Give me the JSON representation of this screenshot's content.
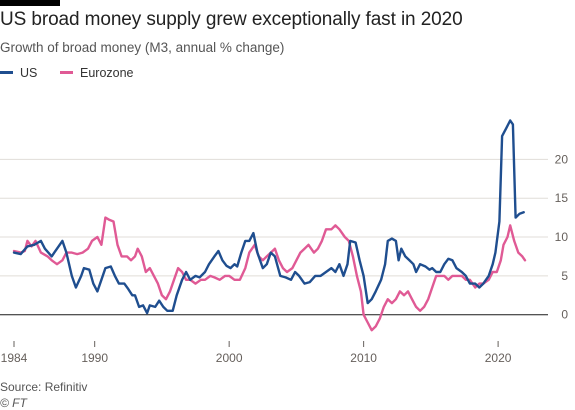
{
  "chart_data": {
    "type": "line",
    "title": "US broad money supply grew exceptionally fast in 2020",
    "subtitle": "Growth of broad money (M3, annual % change)",
    "xlabel": "",
    "ylabel": "",
    "xlim": [
      1984,
      2022
    ],
    "ylim": [
      -3,
      27
    ],
    "x_ticks": [
      1984,
      1990,
      2000,
      2010,
      2020
    ],
    "x_tick_labels": [
      "1984",
      "1990",
      "2000",
      "2010",
      "2020"
    ],
    "y_ticks": [
      0,
      5,
      10,
      15,
      20
    ],
    "y_tick_labels": [
      "0",
      "5",
      "10",
      "15",
      "20"
    ],
    "grid": true,
    "legend_position": "top-left",
    "series": [
      {
        "name": "US",
        "color": "#1f4e8f",
        "points": [
          [
            1984,
            8.0
          ],
          [
            1984.5,
            7.8
          ],
          [
            1985,
            8.8
          ],
          [
            1985.5,
            9.0
          ],
          [
            1986,
            9.5
          ],
          [
            1986.3,
            8.5
          ],
          [
            1986.8,
            7.5
          ],
          [
            1987,
            8.0
          ],
          [
            1987.6,
            9.5
          ],
          [
            1987.9,
            8.0
          ],
          [
            1988.3,
            5.0
          ],
          [
            1988.6,
            3.5
          ],
          [
            1989,
            5.0
          ],
          [
            1989.2,
            6.0
          ],
          [
            1989.6,
            5.8
          ],
          [
            1989.9,
            4.0
          ],
          [
            1990.2,
            3.0
          ],
          [
            1990.5,
            4.5
          ],
          [
            1990.8,
            6.0
          ],
          [
            1991.2,
            6.2
          ],
          [
            1991.5,
            5.0
          ],
          [
            1991.8,
            4.0
          ],
          [
            1992.2,
            4.0
          ],
          [
            1992.5,
            3.3
          ],
          [
            1992.8,
            2.5
          ],
          [
            1993,
            2.5
          ],
          [
            1993.3,
            1.0
          ],
          [
            1993.6,
            1.2
          ],
          [
            1993.9,
            0.2
          ],
          [
            1994.1,
            1.2
          ],
          [
            1994.5,
            1.0
          ],
          [
            1994.8,
            1.8
          ],
          [
            1995.1,
            1.0
          ],
          [
            1995.4,
            0.5
          ],
          [
            1995.8,
            0.5
          ],
          [
            1996.1,
            2.5
          ],
          [
            1996.5,
            4.5
          ],
          [
            1996.8,
            5.5
          ],
          [
            1997.1,
            4.5
          ],
          [
            1997.5,
            5.0
          ],
          [
            1997.8,
            4.8
          ],
          [
            1998.2,
            5.5
          ],
          [
            1998.5,
            6.5
          ],
          [
            1998.9,
            7.5
          ],
          [
            1999.2,
            8.2
          ],
          [
            1999.5,
            7.0
          ],
          [
            1999.8,
            6.3
          ],
          [
            2000.1,
            6.0
          ],
          [
            2000.4,
            6.5
          ],
          [
            2000.6,
            6.2
          ],
          [
            2000.9,
            8.0
          ],
          [
            2001.2,
            9.5
          ],
          [
            2001.5,
            9.5
          ],
          [
            2001.8,
            10.5
          ],
          [
            2002.1,
            8.0
          ],
          [
            2002.5,
            6.0
          ],
          [
            2002.8,
            6.5
          ],
          [
            2003.1,
            8.0
          ],
          [
            2003.4,
            7.5
          ],
          [
            2003.8,
            5.0
          ],
          [
            2004.2,
            4.8
          ],
          [
            2004.6,
            4.5
          ],
          [
            2004.9,
            5.5
          ],
          [
            2005.2,
            5.0
          ],
          [
            2005.6,
            4.0
          ],
          [
            2006,
            4.2
          ],
          [
            2006.4,
            5.0
          ],
          [
            2006.8,
            5.0
          ],
          [
            2007.2,
            5.5
          ],
          [
            2007.6,
            6.0
          ],
          [
            2007.9,
            5.5
          ],
          [
            2008.2,
            6.5
          ],
          [
            2008.5,
            5.0
          ],
          [
            2008.8,
            6.5
          ],
          [
            2009,
            9.5
          ],
          [
            2009.4,
            9.3
          ],
          [
            2009.7,
            7.0
          ],
          [
            2010,
            5.0
          ],
          [
            2010.3,
            1.5
          ],
          [
            2010.6,
            2.0
          ],
          [
            2010.9,
            3.0
          ],
          [
            2011.3,
            4.5
          ],
          [
            2011.6,
            6.5
          ],
          [
            2011.8,
            9.5
          ],
          [
            2012.1,
            9.8
          ],
          [
            2012.4,
            9.5
          ],
          [
            2012.6,
            7.0
          ],
          [
            2012.8,
            8.5
          ],
          [
            2013.1,
            7.5
          ],
          [
            2013.4,
            7.0
          ],
          [
            2013.7,
            6.5
          ],
          [
            2013.9,
            5.5
          ],
          [
            2014.2,
            6.5
          ],
          [
            2014.6,
            6.2
          ],
          [
            2014.9,
            5.8
          ],
          [
            2015.1,
            6.0
          ],
          [
            2015.4,
            5.5
          ],
          [
            2015.7,
            5.5
          ],
          [
            2016,
            6.5
          ],
          [
            2016.3,
            7.2
          ],
          [
            2016.6,
            7.0
          ],
          [
            2016.9,
            6.0
          ],
          [
            2017.3,
            5.5
          ],
          [
            2017.6,
            5.0
          ],
          [
            2017.9,
            4.0
          ],
          [
            2018.3,
            4.0
          ],
          [
            2018.6,
            3.5
          ],
          [
            2018.9,
            4.0
          ],
          [
            2019.3,
            5.0
          ],
          [
            2019.6,
            6.5
          ],
          [
            2019.8,
            8.0
          ],
          [
            2020.1,
            12.0
          ],
          [
            2020.3,
            23.0
          ],
          [
            2020.6,
            24.0
          ],
          [
            2020.9,
            25.0
          ],
          [
            2021.1,
            24.5
          ],
          [
            2021.3,
            12.5
          ],
          [
            2021.6,
            13.0
          ],
          [
            2021.9,
            13.2
          ]
        ]
      },
      {
        "name": "Eurozone",
        "color": "#e05a95",
        "points": [
          [
            1984,
            8.2
          ],
          [
            1984.5,
            8.0
          ],
          [
            1984.8,
            8.2
          ],
          [
            1985,
            9.5
          ],
          [
            1985.3,
            8.8
          ],
          [
            1985.6,
            9.5
          ],
          [
            1986,
            8.0
          ],
          [
            1986.5,
            7.5
          ],
          [
            1986.8,
            7.0
          ],
          [
            1987.2,
            6.5
          ],
          [
            1987.6,
            7.0
          ],
          [
            1987.9,
            8.0
          ],
          [
            1988.3,
            8.0
          ],
          [
            1988.7,
            7.8
          ],
          [
            1989.1,
            8.0
          ],
          [
            1989.5,
            8.5
          ],
          [
            1989.8,
            9.5
          ],
          [
            1990.2,
            10.0
          ],
          [
            1990.5,
            9.0
          ],
          [
            1990.8,
            12.5
          ],
          [
            1991.1,
            12.2
          ],
          [
            1991.4,
            12.0
          ],
          [
            1991.7,
            9.0
          ],
          [
            1992,
            7.5
          ],
          [
            1992.4,
            7.5
          ],
          [
            1992.7,
            7.0
          ],
          [
            1993,
            7.5
          ],
          [
            1993.2,
            8.5
          ],
          [
            1993.5,
            7.5
          ],
          [
            1993.8,
            5.5
          ],
          [
            1994.1,
            6.0
          ],
          [
            1994.4,
            5.0
          ],
          [
            1994.7,
            4.0
          ],
          [
            1995,
            2.5
          ],
          [
            1995.3,
            2.0
          ],
          [
            1995.6,
            3.0
          ],
          [
            1995.9,
            4.5
          ],
          [
            1996.2,
            6.0
          ],
          [
            1996.5,
            5.5
          ],
          [
            1996.8,
            4.5
          ],
          [
            1997.1,
            4.5
          ],
          [
            1997.5,
            4.0
          ],
          [
            1997.9,
            4.5
          ],
          [
            1998.2,
            4.5
          ],
          [
            1998.6,
            5.0
          ],
          [
            1998.9,
            4.8
          ],
          [
            1999.3,
            4.5
          ],
          [
            1999.7,
            5.0
          ],
          [
            2000,
            5.0
          ],
          [
            2000.4,
            4.5
          ],
          [
            2000.8,
            4.5
          ],
          [
            2001.2,
            6.0
          ],
          [
            2001.5,
            8.0
          ],
          [
            2001.9,
            9.0
          ],
          [
            2002.2,
            7.5
          ],
          [
            2002.5,
            7.0
          ],
          [
            2002.8,
            7.5
          ],
          [
            2003.1,
            8.0
          ],
          [
            2003.4,
            8.5
          ],
          [
            2003.7,
            7.0
          ],
          [
            2004,
            6.0
          ],
          [
            2004.3,
            5.5
          ],
          [
            2004.7,
            6.0
          ],
          [
            2005,
            7.0
          ],
          [
            2005.3,
            8.0
          ],
          [
            2005.6,
            8.5
          ],
          [
            2005.9,
            9.0
          ],
          [
            2006.3,
            8.0
          ],
          [
            2006.6,
            8.5
          ],
          [
            2006.9,
            9.5
          ],
          [
            2007.2,
            11.0
          ],
          [
            2007.6,
            11.0
          ],
          [
            2007.9,
            11.5
          ],
          [
            2008.2,
            11.0
          ],
          [
            2008.6,
            10.0
          ],
          [
            2008.9,
            9.5
          ],
          [
            2009.2,
            7.5
          ],
          [
            2009.5,
            5.0
          ],
          [
            2009.8,
            3.0
          ],
          [
            2010,
            0.0
          ],
          [
            2010.3,
            -1.0
          ],
          [
            2010.6,
            -2.0
          ],
          [
            2010.9,
            -1.5
          ],
          [
            2011.2,
            -0.5
          ],
          [
            2011.5,
            1.0
          ],
          [
            2011.8,
            2.0
          ],
          [
            2012.1,
            1.5
          ],
          [
            2012.4,
            2.0
          ],
          [
            2012.7,
            3.0
          ],
          [
            2013,
            2.5
          ],
          [
            2013.3,
            3.0
          ],
          [
            2013.6,
            2.0
          ],
          [
            2013.9,
            1.0
          ],
          [
            2014.2,
            0.5
          ],
          [
            2014.5,
            1.0
          ],
          [
            2014.8,
            2.0
          ],
          [
            2015.1,
            3.5
          ],
          [
            2015.4,
            5.0
          ],
          [
            2015.7,
            5.0
          ],
          [
            2016,
            5.0
          ],
          [
            2016.3,
            4.5
          ],
          [
            2016.6,
            5.0
          ],
          [
            2016.9,
            5.0
          ],
          [
            2017.3,
            5.0
          ],
          [
            2017.6,
            4.5
          ],
          [
            2017.9,
            4.5
          ],
          [
            2018.3,
            3.5
          ],
          [
            2018.6,
            4.0
          ],
          [
            2018.9,
            4.0
          ],
          [
            2019.3,
            4.5
          ],
          [
            2019.6,
            5.5
          ],
          [
            2019.9,
            5.5
          ],
          [
            2020.2,
            7.0
          ],
          [
            2020.4,
            9.0
          ],
          [
            2020.7,
            10.0
          ],
          [
            2020.9,
            11.5
          ],
          [
            2021.2,
            9.5
          ],
          [
            2021.5,
            8.0
          ],
          [
            2021.8,
            7.5
          ],
          [
            2022,
            7.0
          ]
        ]
      }
    ]
  },
  "source_note": "Source: Refinitiv",
  "credit": "© FT",
  "colors": {
    "us": "#1f4e8f",
    "eurozone": "#e05a95",
    "grid": "#e0ddd8",
    "zero_line": "#1a1a1a"
  }
}
